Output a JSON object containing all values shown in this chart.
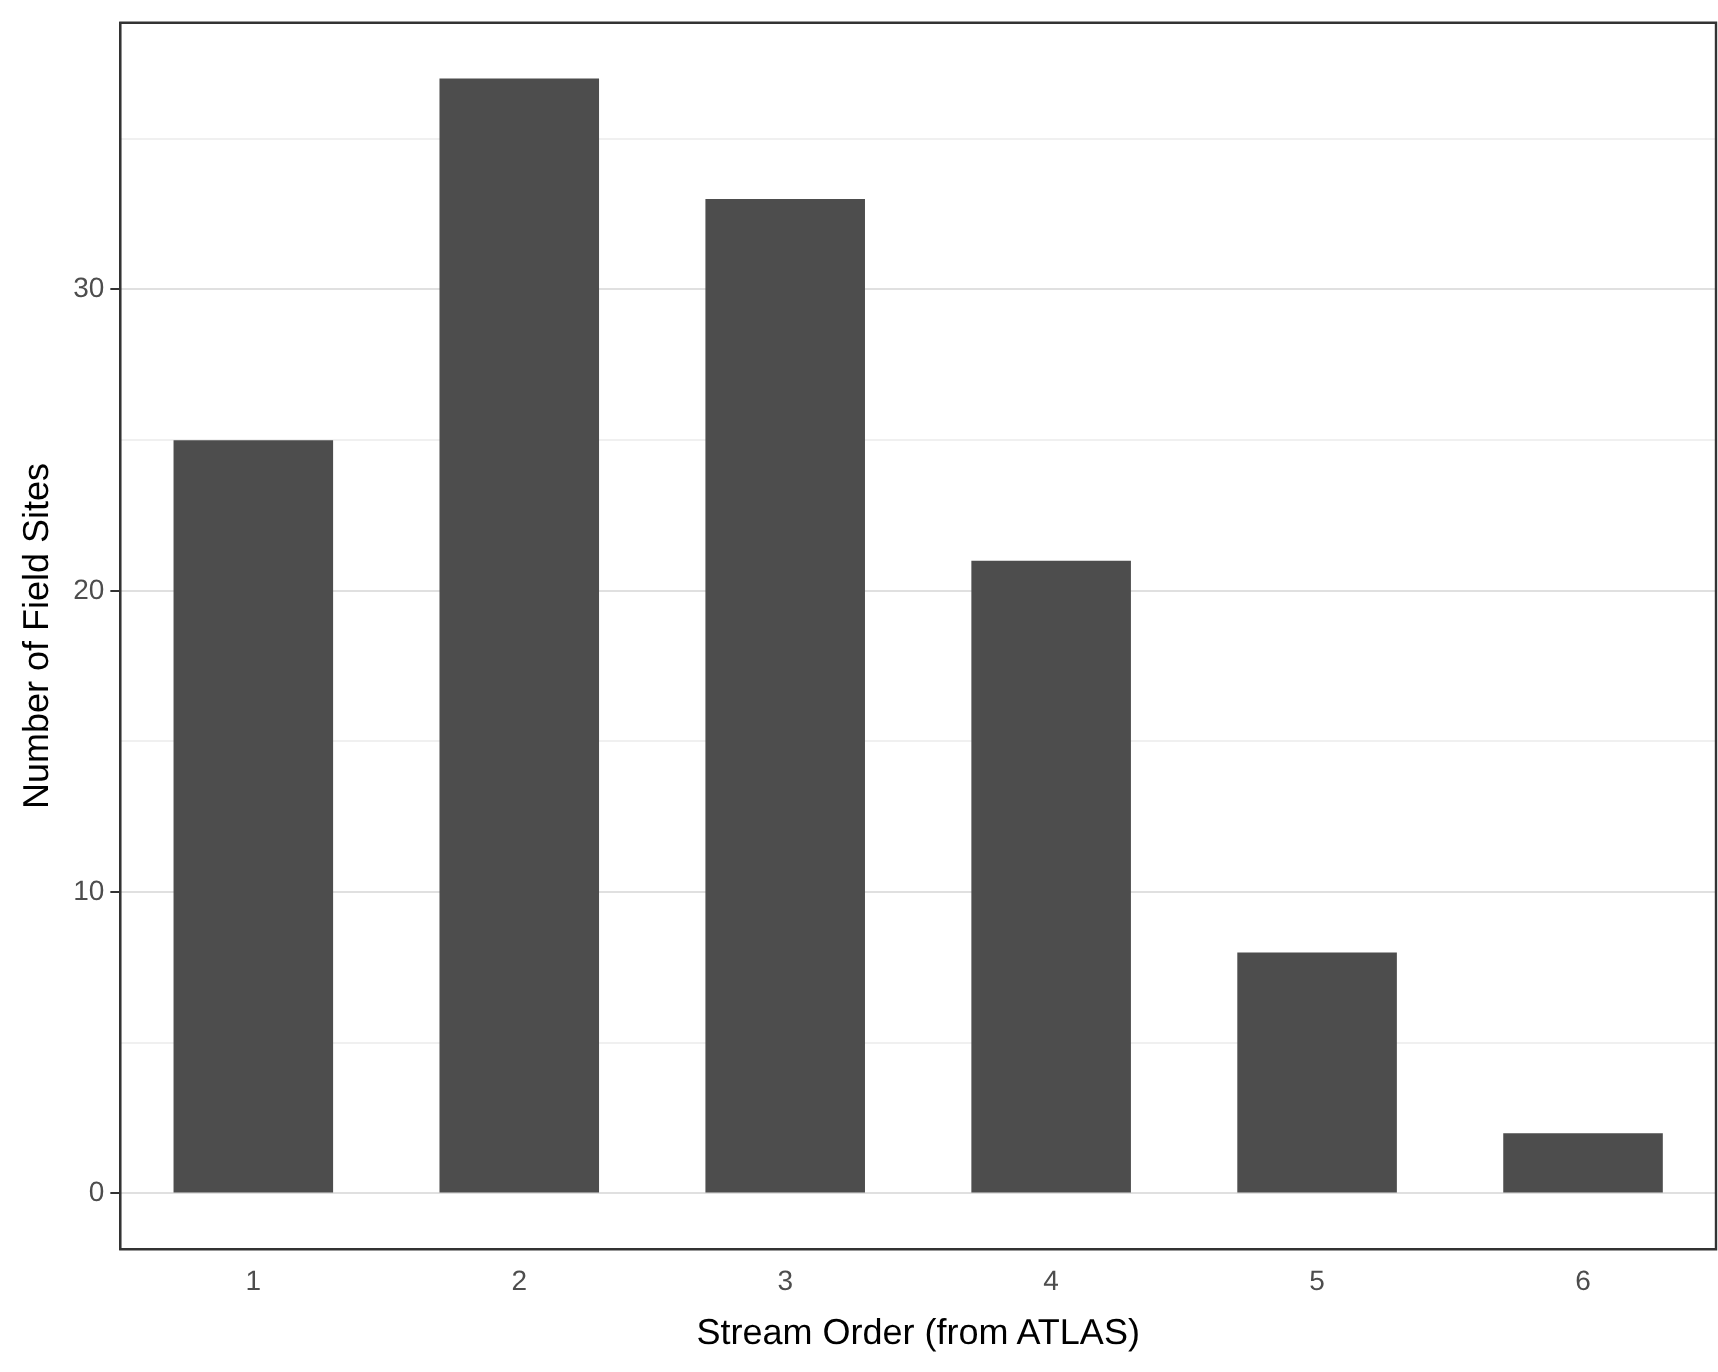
{
  "chart_data": {
    "type": "bar",
    "xlabel": "Stream Order (from ATLAS)",
    "ylabel": "Number of Field Sites",
    "categories": [
      "1",
      "2",
      "3",
      "4",
      "5",
      "6"
    ],
    "values": [
      25,
      37,
      33,
      21,
      8,
      2
    ],
    "color": "#4d4d4d",
    "ylim": [
      -1.85,
      38.85
    ],
    "yticks": [
      0,
      {
        "value": 5,
        "label": null
      },
      10,
      {
        "value": 15,
        "label": null
      },
      20,
      {
        "value": 25,
        "label": null
      },
      30,
      {
        "value": 35,
        "label": null
      }
    ],
    "grid": "y"
  }
}
